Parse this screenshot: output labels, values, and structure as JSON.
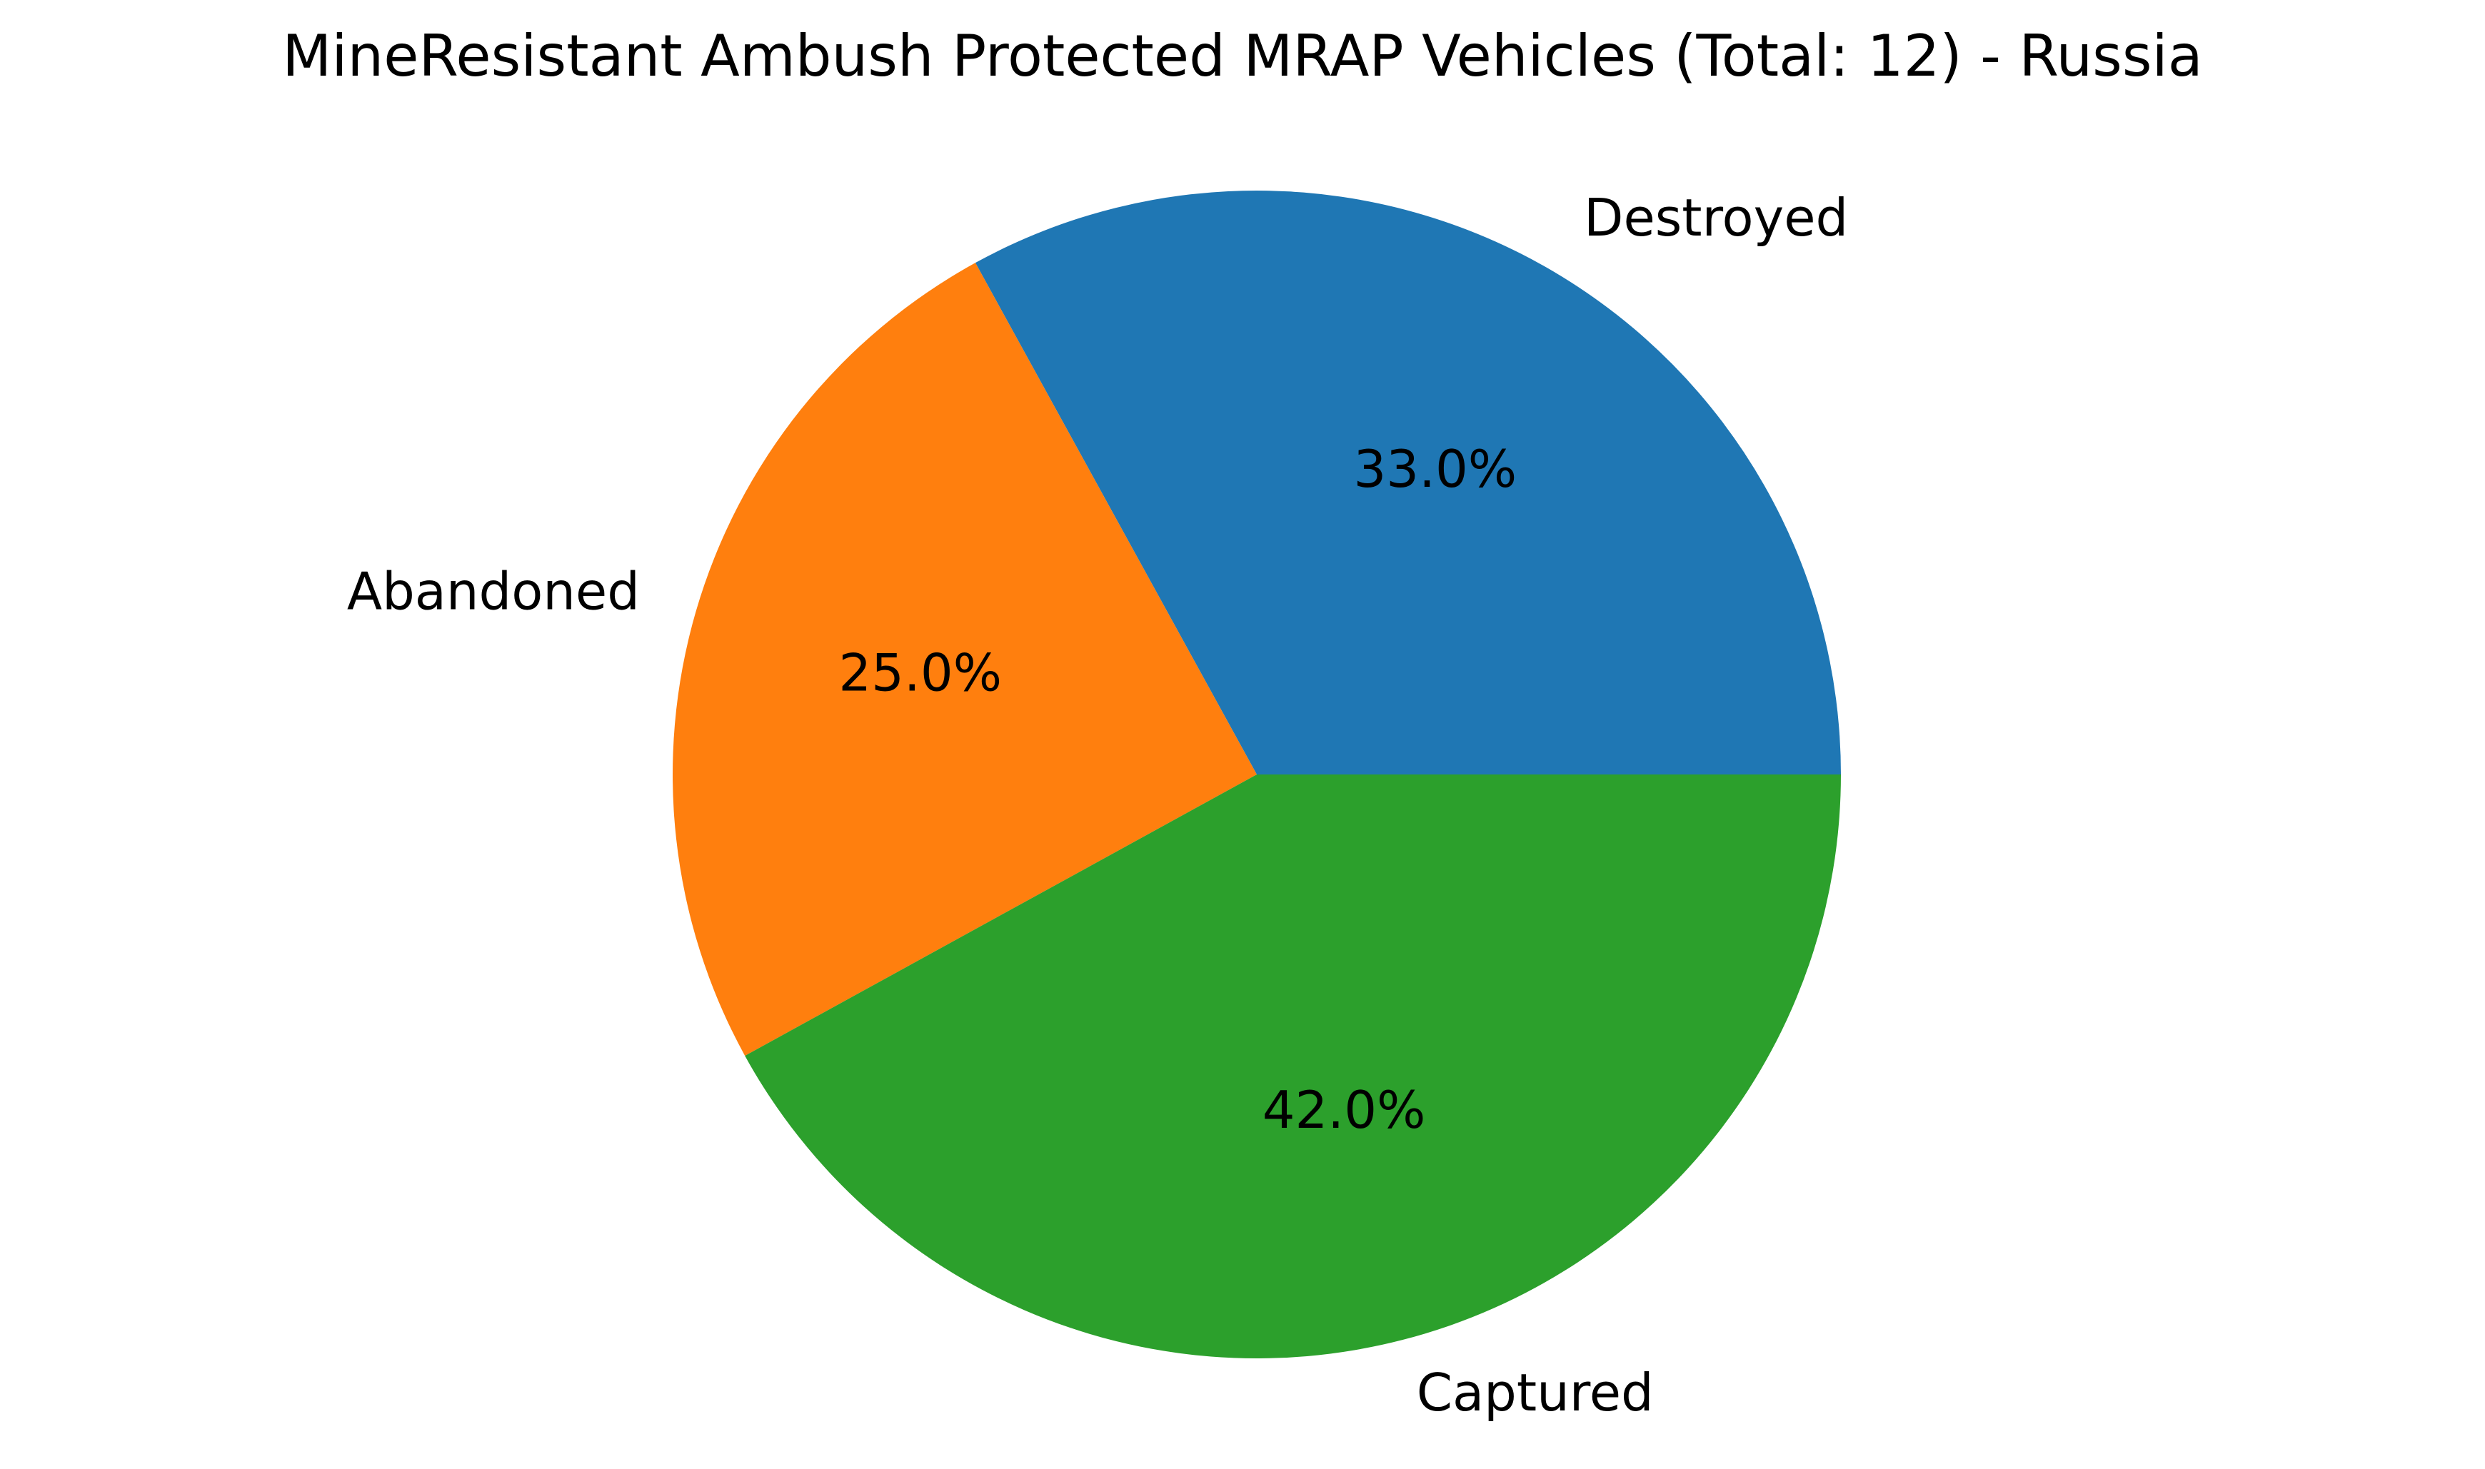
{
  "chart_data": {
    "type": "pie",
    "title": "MineResistant Ambush Protected MRAP Vehicles (Total: 12) - Russia",
    "categories": [
      "Destroyed",
      "Abandoned",
      "Captured"
    ],
    "values": [
      33.0,
      25.0,
      42.0
    ],
    "percent_labels": [
      "33.0%",
      "25.0%",
      "42.0%"
    ],
    "colors": [
      "#1f77b4",
      "#ff7f0e",
      "#2ca02c"
    ],
    "start_angle_deg": 0,
    "direction": "counterclockwise",
    "legend": false
  }
}
